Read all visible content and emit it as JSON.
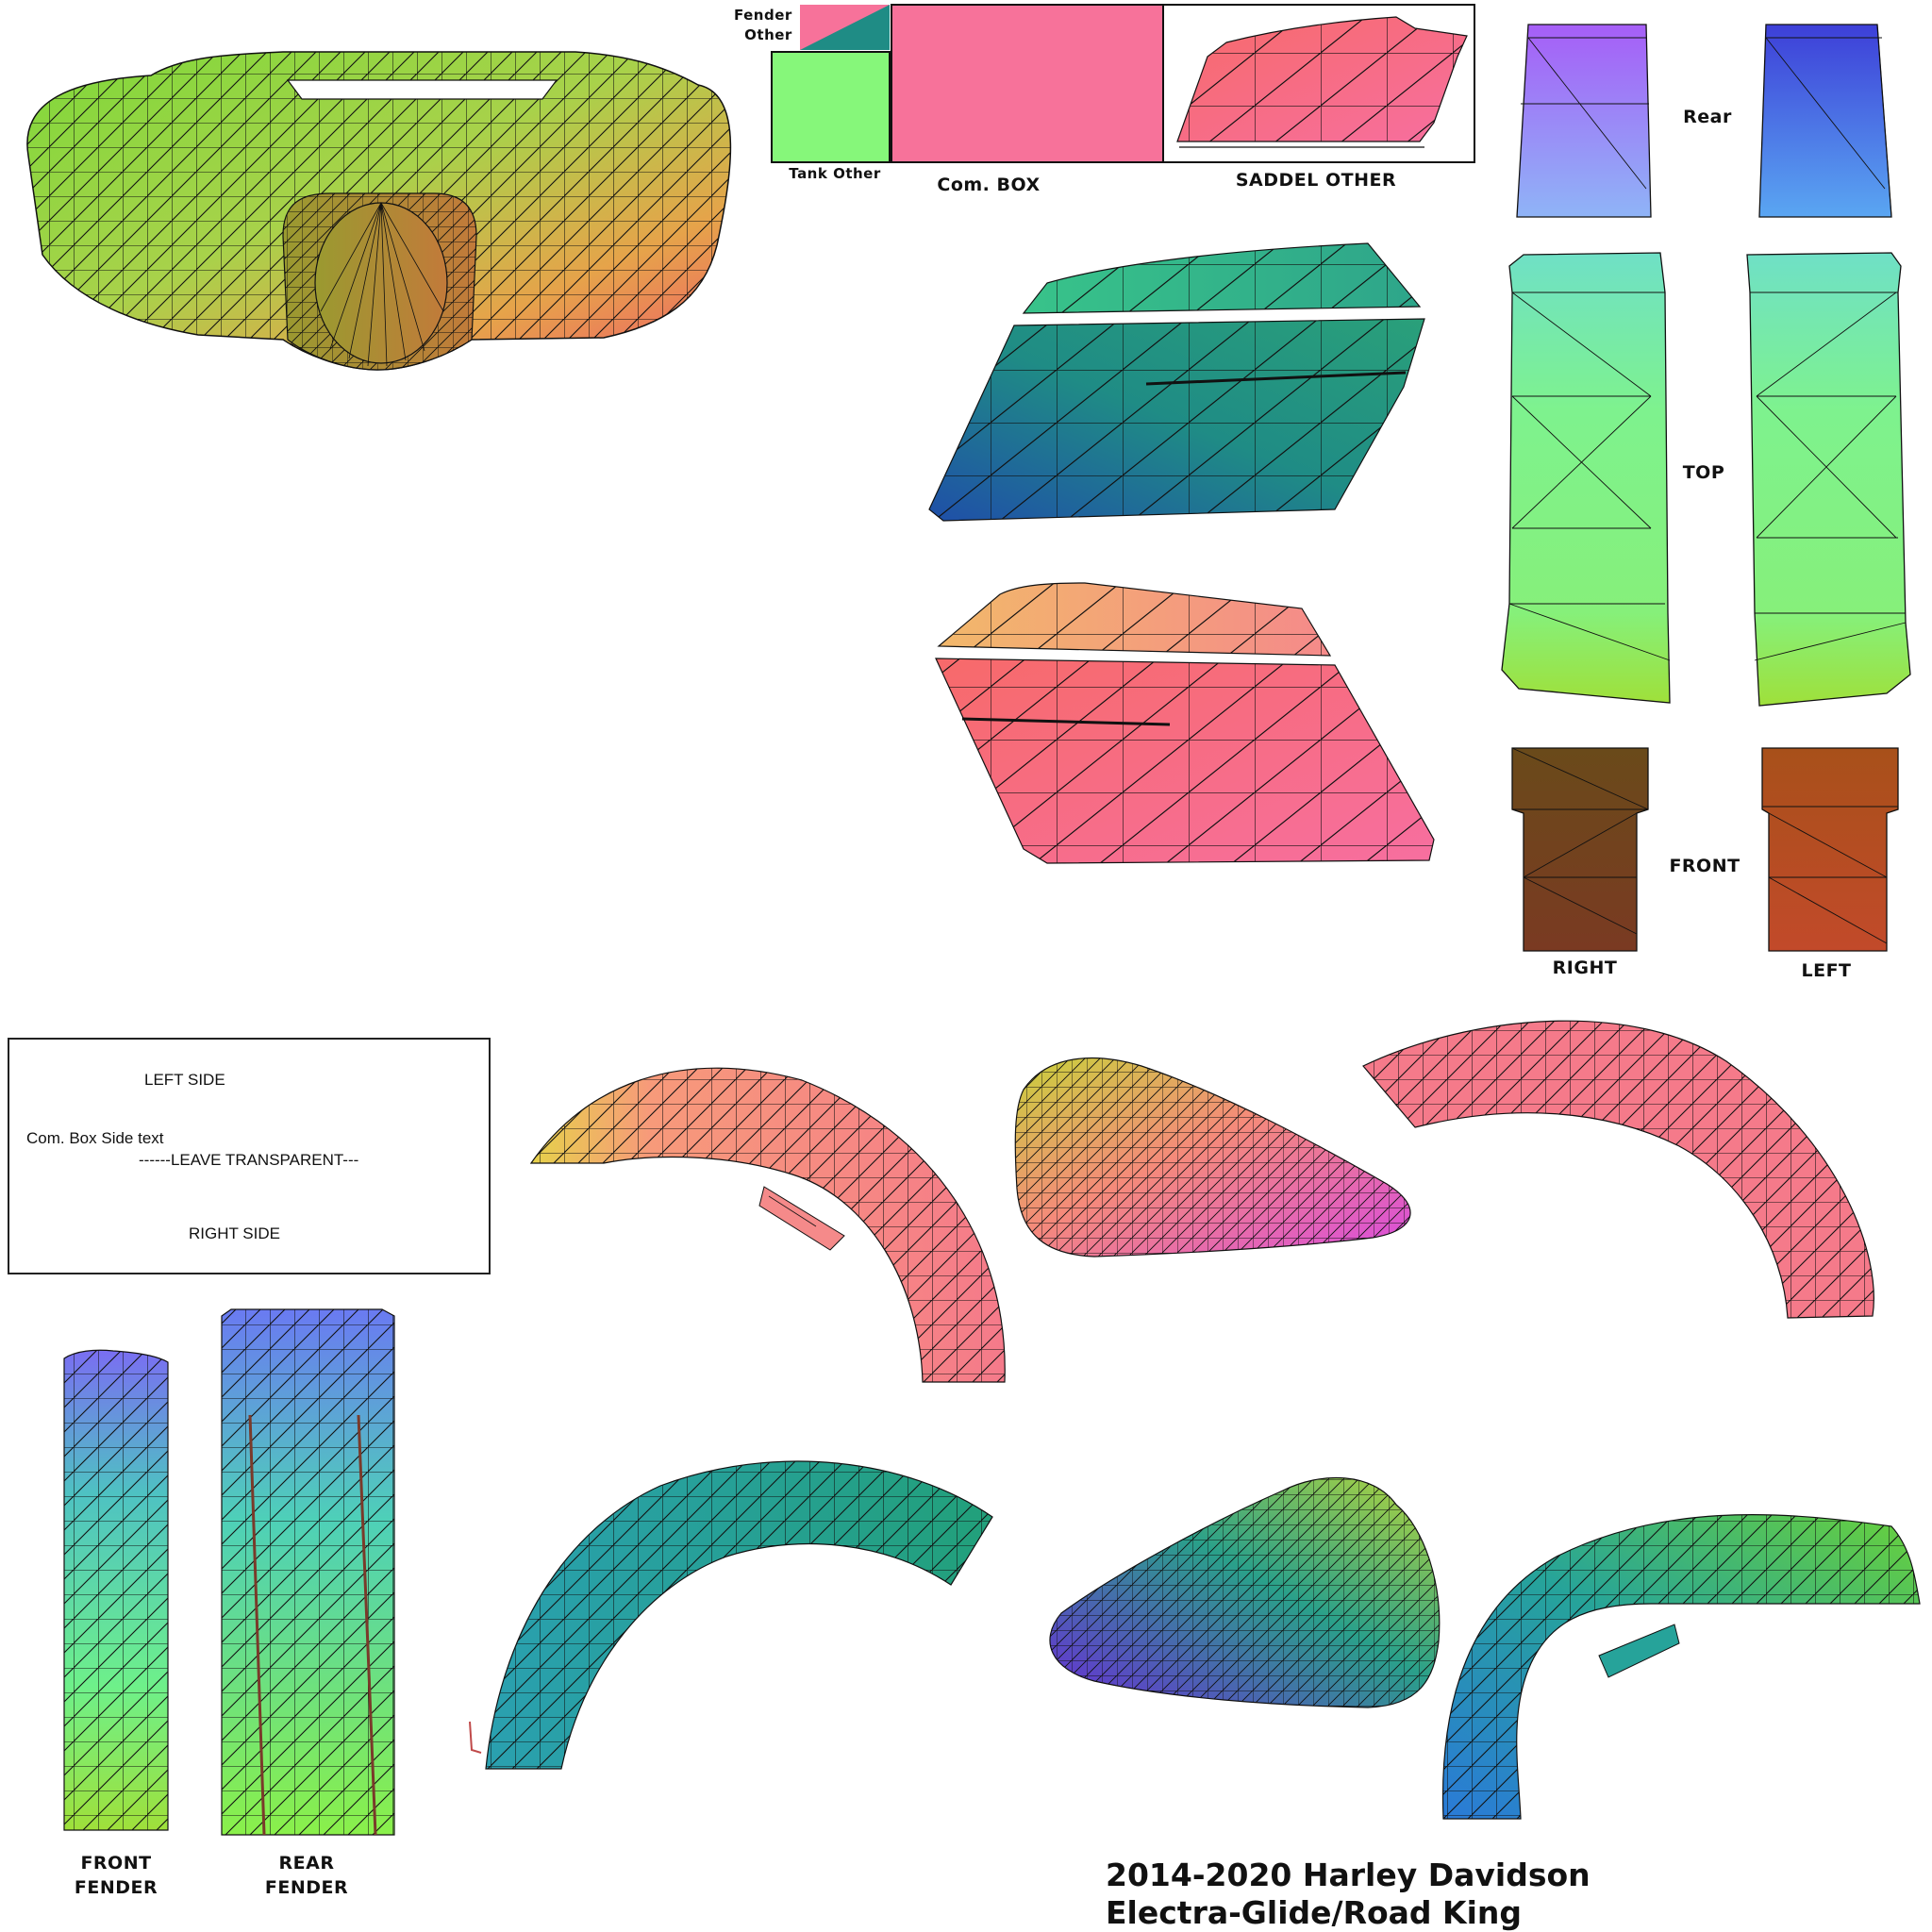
{
  "title_line1": "2014-2020 Harley Davidson",
  "title_line2": "Electra-Glide/Road King",
  "swatches": {
    "fender_other": "Fender\nOther",
    "tank_other": "Tank Other",
    "com_box": "Com. BOX",
    "saddel_other": "SADDEL OTHER",
    "colors": {
      "pink": "#f7729a",
      "teal": "#1f8c85",
      "green": "#86f77a"
    }
  },
  "side_labels": {
    "rear": "Rear",
    "top": "TOP",
    "front": "FRONT",
    "right": "RIGHT",
    "left": "LEFT"
  },
  "fender_labels": {
    "front_fender": "FRONT\nFENDER",
    "rear_fender": "REAR\nFENDER"
  },
  "note_box": {
    "left_side": "LEFT SIDE",
    "com_box_side_text": "Com. Box Side text",
    "leave_transparent": "------LEAVE TRANSPARENT---",
    "right_side": "RIGHT SIDE"
  },
  "parts": [
    {
      "name": "fairing",
      "icon": "fairing-mesh-icon"
    },
    {
      "name": "saddlebag-lid-teal",
      "icon": "saddlebag-lid-icon"
    },
    {
      "name": "saddlebag-body-teal",
      "icon": "saddlebag-body-icon"
    },
    {
      "name": "saddlebag-lid-pink",
      "icon": "saddlebag-lid-icon"
    },
    {
      "name": "saddlebag-body-pink",
      "icon": "saddlebag-body-icon"
    },
    {
      "name": "tour-pack-rear",
      "icon": "panel-mesh-icon"
    },
    {
      "name": "tour-pack-top",
      "icon": "panel-mesh-icon"
    },
    {
      "name": "tour-pack-front",
      "icon": "panel-mesh-icon"
    },
    {
      "name": "front-fender-left",
      "icon": "fender-arc-icon"
    },
    {
      "name": "front-fender-right",
      "icon": "fender-arc-icon"
    },
    {
      "name": "rear-fender-left",
      "icon": "fender-arc-icon"
    },
    {
      "name": "rear-fender-right",
      "icon": "fender-arc-icon"
    },
    {
      "name": "tank-left",
      "icon": "tank-mesh-icon"
    },
    {
      "name": "tank-right",
      "icon": "tank-mesh-icon"
    },
    {
      "name": "front-fender-top",
      "icon": "fender-strip-icon"
    },
    {
      "name": "rear-fender-top",
      "icon": "fender-strip-icon"
    }
  ]
}
